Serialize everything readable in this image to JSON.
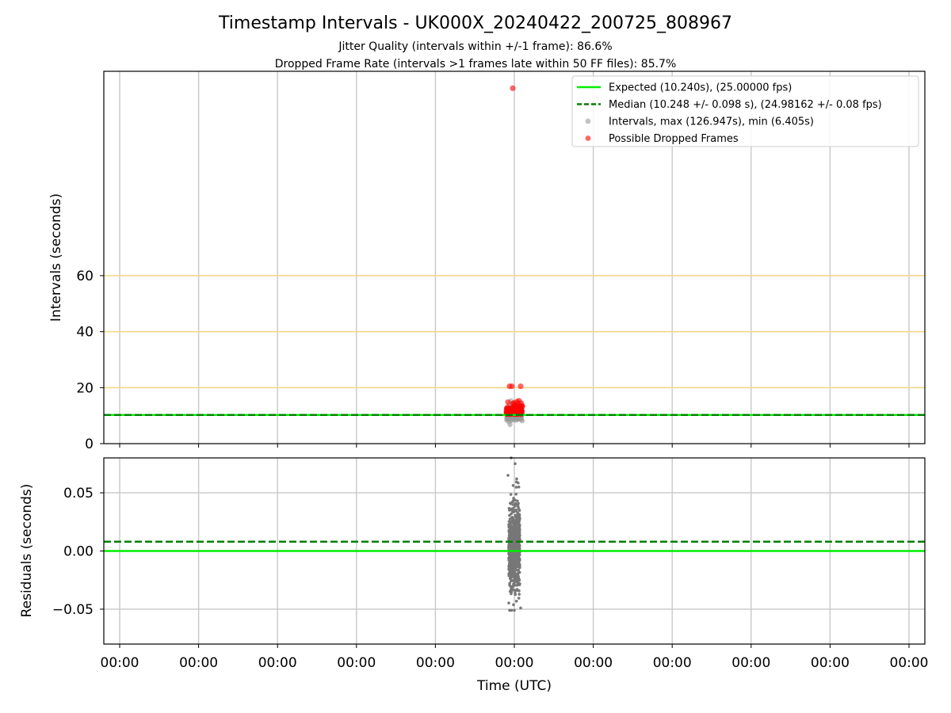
{
  "figure": {
    "title": "Timestamp Intervals - UK000X_20240422_200725_808967",
    "subtitle_1": "Jitter Quality (intervals within +/-1 frame): 86.6%",
    "subtitle_2": "Dropped Frame Rate (intervals >1 frames late within 50 FF files): 85.7%"
  },
  "chart_data": [
    {
      "type": "scatter",
      "panel": "intervals",
      "ylabel": "Intervals (seconds)",
      "xlabel": "",
      "ylim": [
        0,
        133
      ],
      "yticks": [
        0,
        20,
        40,
        60
      ],
      "xticks": [
        "00:00",
        "00:00",
        "00:00",
        "00:00",
        "00:00",
        "00:00",
        "00:00",
        "00:00",
        "00:00",
        "00:00",
        "00:00"
      ],
      "grid": true,
      "legend_position": "top-right",
      "reference_lines": [
        {
          "name": "Expected (10.240s), (25.00000 fps)",
          "y": 10.24,
          "style": "solid",
          "color": "#00ee00"
        },
        {
          "name": "Median (10.248 +/- 0.098 s), (24.98162 +/- 0.08 fps)",
          "y": 10.248,
          "style": "dashed",
          "color": "#008000"
        }
      ],
      "threshold_lines": [
        20,
        40,
        60
      ],
      "series": [
        {
          "name": "Intervals, max (126.947s), min (6.405s)",
          "color": "#999999",
          "max": 126.947,
          "min": 6.405
        },
        {
          "name": "Possible Dropped Frames",
          "color": "#ff0000",
          "notable_points": [
            126.947,
            20.48,
            20.48,
            20.48,
            15.3,
            14.8,
            13.5,
            12.9
          ]
        }
      ]
    },
    {
      "type": "scatter",
      "panel": "residuals",
      "ylabel": "Residuals (seconds)",
      "xlabel": "Time (UTC)",
      "ylim": [
        -0.08,
        0.08
      ],
      "yticks": [
        -0.05,
        0.0,
        0.05
      ],
      "ytick_labels": [
        "−0.05",
        "0.00",
        "0.05"
      ],
      "xticks": [
        "00:00",
        "00:00",
        "00:00",
        "00:00",
        "00:00",
        "00:00",
        "00:00",
        "00:00",
        "00:00",
        "00:00",
        "00:00"
      ],
      "grid": true,
      "reference_lines": [
        {
          "y": 0.0,
          "style": "solid",
          "color": "#00ee00"
        },
        {
          "y": 0.008,
          "style": "dashed",
          "color": "#008000"
        }
      ],
      "series": [
        {
          "name": "residuals",
          "color": "#777777",
          "range": [
            -0.051,
            0.08
          ]
        }
      ]
    }
  ]
}
